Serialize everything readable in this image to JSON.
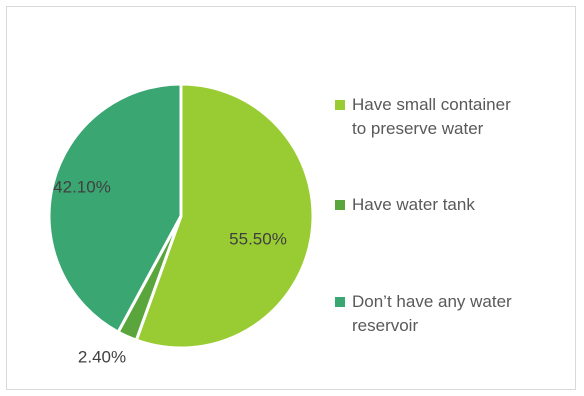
{
  "chart_data": {
    "type": "pie",
    "title": "",
    "slices": [
      {
        "label": "Have small container to preserve water",
        "value": 55.5,
        "display": "55.50%",
        "color": "#99CC33"
      },
      {
        "label": "Have water tank",
        "value": 2.4,
        "display": "2.40%",
        "color": "#5BA63C"
      },
      {
        "label": "Don’t have any water reservoir",
        "value": 42.1,
        "display": "42.10%",
        "color": "#3AA672"
      }
    ],
    "start_angle_deg": 0,
    "direction": "clockwise",
    "legend_position": "right"
  },
  "legend": {
    "items": [
      {
        "line1": "Have small container",
        "line2": "to preserve water"
      },
      {
        "line1": "Have water tank",
        "line2": ""
      },
      {
        "line1": "Don’t have any water",
        "line2": "reservoir"
      }
    ]
  }
}
